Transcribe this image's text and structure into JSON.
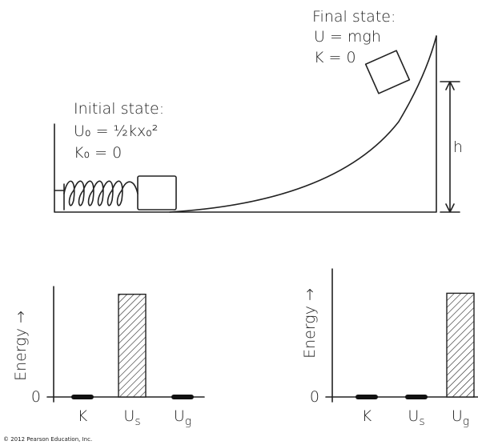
{
  "scene": {
    "initial": {
      "title": "Initial state:",
      "lines": [
        "U₀ = ½kx₀²",
        "K₀ = 0"
      ]
    },
    "final": {
      "title": "Final state:",
      "lines": [
        "U = mgh",
        "K = 0"
      ]
    },
    "height_label": "h"
  },
  "charts": [
    {
      "type": "bar",
      "y_label": "Energy →",
      "ylim": [
        0,
        1
      ],
      "yticks": [
        0
      ],
      "categories": [
        {
          "text": "K"
        },
        {
          "text": "U",
          "sub": "s"
        },
        {
          "text": "U",
          "sub": "g"
        }
      ],
      "values": [
        0,
        0.93,
        0
      ]
    },
    {
      "type": "bar",
      "y_label": "Energy →",
      "ylim": [
        0,
        1
      ],
      "yticks": [
        0
      ],
      "categories": [
        {
          "text": "K"
        },
        {
          "text": "U",
          "sub": "s"
        },
        {
          "text": "U",
          "sub": "g"
        }
      ],
      "values": [
        0,
        0,
        0.81
      ]
    }
  ],
  "footer": "© 2012 Pearson Education, Inc."
}
